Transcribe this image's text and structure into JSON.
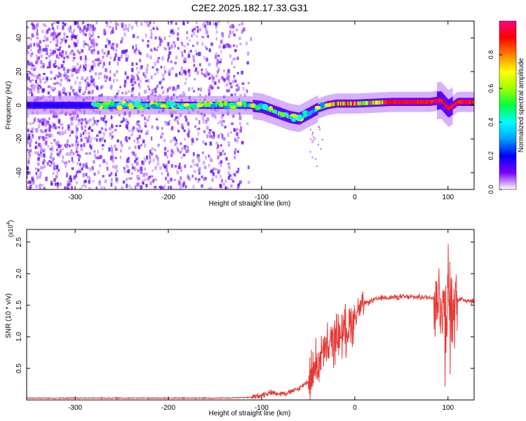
{
  "title": "C2E2.2025.182.17.33.G31",
  "spectrogram": {
    "type": "heatmap",
    "xlabel": "Height of straight line (km)",
    "ylabel": "Frequency (Hz)",
    "xlim": [
      -352,
      128
    ],
    "ylim": [
      -50,
      50
    ],
    "xticks": [
      -300,
      -200,
      -100,
      0,
      100
    ],
    "yticks": [
      -40,
      -20,
      0,
      20,
      40
    ],
    "colorbar": {
      "label": "Normalized spectral amplitude",
      "range": [
        0,
        1
      ],
      "ticks": [
        0.0,
        0.2,
        0.4,
        0.6,
        0.8
      ],
      "colormap": "rainbow",
      "colors": [
        "#ffffff",
        "#7a00ff",
        "#0000ff",
        "#00a0ff",
        "#00ffff",
        "#00ff40",
        "#a0ff00",
        "#ffff00",
        "#ff8000",
        "#ff0000",
        "#ff0080"
      ]
    },
    "ridge": [
      {
        "x": -352,
        "f": 0
      },
      {
        "x": -280,
        "f": 0
      },
      {
        "x": -200,
        "f": 0
      },
      {
        "x": -130,
        "f": 0
      },
      {
        "x": -115,
        "f": 0
      },
      {
        "x": -100,
        "f": -1
      },
      {
        "x": -90,
        "f": -3
      },
      {
        "x": -80,
        "f": -5
      },
      {
        "x": -70,
        "f": -7
      },
      {
        "x": -60,
        "f": -8
      },
      {
        "x": -50,
        "f": -5
      },
      {
        "x": -40,
        "f": -2
      },
      {
        "x": -30,
        "f": 0
      },
      {
        "x": -20,
        "f": 1
      },
      {
        "x": 0,
        "f": 1
      },
      {
        "x": 40,
        "f": 2
      },
      {
        "x": 80,
        "f": 2
      },
      {
        "x": 92,
        "f": 3
      },
      {
        "x": 100,
        "f": -2
      },
      {
        "x": 110,
        "f": 2
      },
      {
        "x": 128,
        "f": 2
      }
    ],
    "noise_region_xlim": [
      -352,
      -110
    ]
  },
  "snr": {
    "type": "line",
    "xlabel": "Height of straight line (km)",
    "ylabel": "SNR (10 * v/v)",
    "multiplier_label": "(x10",
    "multiplier_exp": "4",
    "xlim": [
      -352,
      128
    ],
    "ylim": [
      0,
      2.7
    ],
    "xticks": [
      -300,
      -200,
      -100,
      0,
      100
    ],
    "yticks": [
      0.5,
      1.0,
      1.5,
      2.0,
      2.5
    ],
    "ytick_labels": [
      "0.5",
      "1.0",
      "1.5",
      "2.0",
      "2.5"
    ],
    "color": "#e53935",
    "envelope": [
      [
        -352,
        0.03
      ],
      [
        -250,
        0.03
      ],
      [
        -150,
        0.03
      ],
      [
        -110,
        0.04
      ],
      [
        -100,
        0.08
      ],
      [
        -90,
        0.12
      ],
      [
        -80,
        0.1
      ],
      [
        -70,
        0.12
      ],
      [
        -60,
        0.18
      ],
      [
        -50,
        0.3
      ],
      [
        -45,
        0.45
      ],
      [
        -40,
        0.6
      ],
      [
        -35,
        0.7
      ],
      [
        -30,
        0.78
      ],
      [
        -25,
        0.9
      ],
      [
        -20,
        1.0
      ],
      [
        -10,
        1.1
      ],
      [
        -5,
        1.2
      ],
      [
        0,
        1.32
      ],
      [
        5,
        1.45
      ],
      [
        10,
        1.52
      ],
      [
        20,
        1.58
      ],
      [
        30,
        1.62
      ],
      [
        50,
        1.63
      ],
      [
        70,
        1.63
      ],
      [
        85,
        1.62
      ],
      [
        95,
        1.55
      ],
      [
        100,
        1.4
      ],
      [
        105,
        1.5
      ],
      [
        110,
        1.6
      ],
      [
        120,
        1.58
      ],
      [
        128,
        1.56
      ]
    ]
  }
}
